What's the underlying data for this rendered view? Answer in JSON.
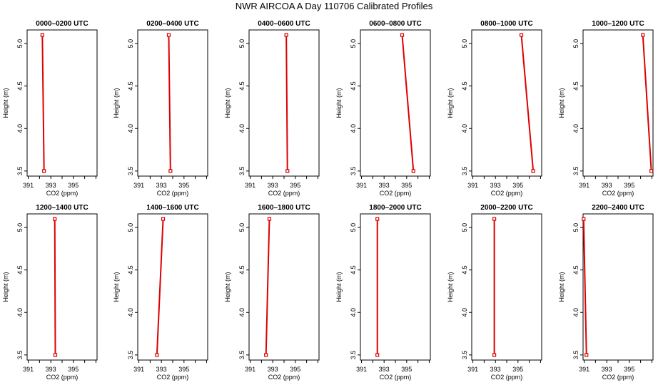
{
  "title": "NWR AIRCOA A  Day 110706  Calibrated Profiles",
  "colors": {
    "profile": "#dd0000",
    "axis": "#000000"
  },
  "chart_data": [
    {
      "type": "line",
      "title": "0000–0200 UTC",
      "xlabel": "CO2 (ppm)",
      "ylabel": "Height (m)",
      "xlim": [
        390.9,
        397.1
      ],
      "ylim": [
        3.44,
        5.16
      ],
      "xticks": [
        "391",
        "393",
        "395"
      ],
      "yticks": [
        "3.5",
        "4.0",
        "4.5",
        "5.0"
      ],
      "x": [
        392.25,
        392.4
      ],
      "y": [
        5.1,
        3.5
      ]
    },
    {
      "type": "line",
      "title": "0200–0400 UTC",
      "xlabel": "CO2 (ppm)",
      "ylabel": "Height (m)",
      "xlim": [
        390.9,
        397.1
      ],
      "ylim": [
        3.44,
        5.16
      ],
      "xticks": [
        "391",
        "393",
        "395"
      ],
      "yticks": [
        "3.5",
        "4.0",
        "4.5",
        "5.0"
      ],
      "x": [
        393.65,
        393.8
      ],
      "y": [
        5.1,
        3.5
      ]
    },
    {
      "type": "line",
      "title": "0400–0600 UTC",
      "xlabel": "CO2 (ppm)",
      "ylabel": "Height (m)",
      "xlim": [
        390.9,
        397.1
      ],
      "ylim": [
        3.44,
        5.16
      ],
      "xticks": [
        "391",
        "393",
        "395"
      ],
      "yticks": [
        "3.5",
        "4.0",
        "4.5",
        "5.0"
      ],
      "x": [
        394.2,
        394.3
      ],
      "y": [
        5.1,
        3.5
      ]
    },
    {
      "type": "line",
      "title": "0600–0800 UTC",
      "xlabel": "CO2 (ppm)",
      "ylabel": "Height (m)",
      "xlim": [
        390.9,
        397.1
      ],
      "ylim": [
        3.44,
        5.16
      ],
      "xticks": [
        "391",
        "393",
        "395"
      ],
      "yticks": [
        "3.5",
        "4.0",
        "4.5",
        "5.0"
      ],
      "x": [
        394.6,
        395.6
      ],
      "y": [
        5.1,
        3.5
      ]
    },
    {
      "type": "line",
      "title": "0800–1000 UTC",
      "xlabel": "CO2 (ppm)",
      "ylabel": "Height (m)",
      "xlim": [
        390.9,
        397.1
      ],
      "ylim": [
        3.44,
        5.16
      ],
      "xticks": [
        "391",
        "393",
        "395"
      ],
      "yticks": [
        "3.5",
        "4.0",
        "4.5",
        "5.0"
      ],
      "x": [
        395.3,
        396.35
      ],
      "y": [
        5.1,
        3.5
      ]
    },
    {
      "type": "line",
      "title": "1000–1200 UTC",
      "xlabel": "CO2 (ppm)",
      "ylabel": "Height (m)",
      "xlim": [
        390.9,
        397.1
      ],
      "ylim": [
        3.44,
        5.16
      ],
      "xticks": [
        "391",
        "393",
        "395"
      ],
      "yticks": [
        "3.5",
        "4.0",
        "4.5",
        "5.0"
      ],
      "x": [
        396.2,
        396.95
      ],
      "y": [
        5.1,
        3.5
      ]
    },
    {
      "type": "line",
      "title": "1200–1400 UTC",
      "xlabel": "CO2 (ppm)",
      "ylabel": "Height (m)",
      "xlim": [
        390.9,
        397.1
      ],
      "ylim": [
        3.44,
        5.16
      ],
      "xticks": [
        "391",
        "393",
        "395"
      ],
      "yticks": [
        "3.5",
        "4.0",
        "4.5",
        "5.0"
      ],
      "x": [
        393.35,
        393.4
      ],
      "y": [
        5.1,
        3.5
      ]
    },
    {
      "type": "line",
      "title": "1400–1600 UTC",
      "xlabel": "CO2 (ppm)",
      "ylabel": "Height (m)",
      "xlim": [
        390.9,
        397.1
      ],
      "ylim": [
        3.44,
        5.16
      ],
      "xticks": [
        "391",
        "393",
        "395"
      ],
      "yticks": [
        "3.5",
        "4.0",
        "4.5",
        "5.0"
      ],
      "x": [
        393.15,
        392.6
      ],
      "y": [
        5.1,
        3.5
      ]
    },
    {
      "type": "line",
      "title": "1600–1800 UTC",
      "xlabel": "CO2 (ppm)",
      "ylabel": "Height (m)",
      "xlim": [
        390.9,
        397.1
      ],
      "ylim": [
        3.44,
        5.16
      ],
      "xticks": [
        "391",
        "393",
        "395"
      ],
      "yticks": [
        "3.5",
        "4.0",
        "4.5",
        "5.0"
      ],
      "x": [
        392.7,
        392.4
      ],
      "y": [
        5.1,
        3.5
      ]
    },
    {
      "type": "line",
      "title": "1800–2000 UTC",
      "xlabel": "CO2 (ppm)",
      "ylabel": "Height (m)",
      "xlim": [
        390.9,
        397.1
      ],
      "ylim": [
        3.44,
        5.16
      ],
      "xticks": [
        "391",
        "393",
        "395"
      ],
      "yticks": [
        "3.5",
        "4.0",
        "4.5",
        "5.0"
      ],
      "x": [
        392.4,
        392.4
      ],
      "y": [
        5.1,
        3.5
      ]
    },
    {
      "type": "line",
      "title": "2000–2200 UTC",
      "xlabel": "CO2 (ppm)",
      "ylabel": "Height (m)",
      "xlim": [
        390.9,
        397.1
      ],
      "ylim": [
        3.44,
        5.16
      ],
      "xticks": [
        "391",
        "393",
        "395"
      ],
      "yticks": [
        "3.5",
        "4.0",
        "4.5",
        "5.0"
      ],
      "x": [
        392.9,
        392.9
      ],
      "y": [
        5.1,
        3.5
      ]
    },
    {
      "type": "line",
      "title": "2200–2400 UTC",
      "xlabel": "CO2 (ppm)",
      "ylabel": "Height (m)",
      "xlim": [
        390.9,
        397.1
      ],
      "ylim": [
        3.44,
        5.16
      ],
      "xticks": [
        "391",
        "393",
        "395"
      ],
      "yticks": [
        "3.5",
        "4.0",
        "4.5",
        "5.0"
      ],
      "x": [
        390.95,
        391.2
      ],
      "y": [
        5.1,
        3.5
      ]
    }
  ]
}
